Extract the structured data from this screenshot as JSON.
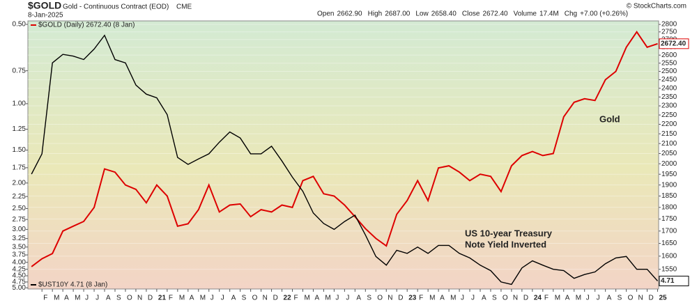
{
  "header": {
    "symbol": "$GOLD",
    "name": "Gold - Continuous Contract (EOD)",
    "exchange": "CME",
    "date": "8-Jan-2025",
    "stats": [
      {
        "label": "Open",
        "value": "2662.90"
      },
      {
        "label": "High",
        "value": "2687.00"
      },
      {
        "label": "Low",
        "value": "2658.40"
      },
      {
        "label": "Close",
        "value": "2672.40"
      },
      {
        "label": "Volume",
        "value": "17.4M"
      },
      {
        "label": "Chg",
        "value": "+7.00 (+0.26%)"
      }
    ],
    "copyright": "© StockCharts.com"
  },
  "chart_data": {
    "type": "line",
    "log_scale": true,
    "x": [
      "2020-01",
      "2020-02",
      "2020-03",
      "2020-04",
      "2020-05",
      "2020-06",
      "2020-07",
      "2020-08",
      "2020-09",
      "2020-10",
      "2020-11",
      "2020-12",
      "2021-01",
      "2021-02",
      "2021-03",
      "2021-04",
      "2021-05",
      "2021-06",
      "2021-07",
      "2021-08",
      "2021-09",
      "2021-10",
      "2021-11",
      "2021-12",
      "2022-01",
      "2022-02",
      "2022-03",
      "2022-04",
      "2022-05",
      "2022-06",
      "2022-07",
      "2022-08",
      "2022-09",
      "2022-10",
      "2022-11",
      "2022-12",
      "2023-01",
      "2023-02",
      "2023-03",
      "2023-04",
      "2023-05",
      "2023-06",
      "2023-07",
      "2023-08",
      "2023-09",
      "2023-10",
      "2023-11",
      "2023-12",
      "2024-01",
      "2024-02",
      "2024-03",
      "2024-04",
      "2024-05",
      "2024-06",
      "2024-07",
      "2024-08",
      "2024-09",
      "2024-10",
      "2024-11",
      "2024-12",
      "2025-01"
    ],
    "xlim": [
      "2020-01",
      "2025-01"
    ],
    "xticks": [
      {
        "value": "2020-02",
        "label": "F"
      },
      {
        "value": "2020-03",
        "label": "M"
      },
      {
        "value": "2020-04",
        "label": "A"
      },
      {
        "value": "2020-05",
        "label": "M"
      },
      {
        "value": "2020-06",
        "label": "J"
      },
      {
        "value": "2020-07",
        "label": "J"
      },
      {
        "value": "2020-08",
        "label": "A"
      },
      {
        "value": "2020-09",
        "label": "S"
      },
      {
        "value": "2020-10",
        "label": "O"
      },
      {
        "value": "2020-11",
        "label": "N"
      },
      {
        "value": "2020-12",
        "label": "D"
      },
      {
        "value": "2021-01",
        "label": "21"
      },
      {
        "value": "2021-02",
        "label": "F"
      },
      {
        "value": "2021-03",
        "label": "M"
      },
      {
        "value": "2021-04",
        "label": "A"
      },
      {
        "value": "2021-05",
        "label": "M"
      },
      {
        "value": "2021-06",
        "label": "J"
      },
      {
        "value": "2021-07",
        "label": "J"
      },
      {
        "value": "2021-08",
        "label": "A"
      },
      {
        "value": "2021-09",
        "label": "S"
      },
      {
        "value": "2021-10",
        "label": "O"
      },
      {
        "value": "2021-11",
        "label": "N"
      },
      {
        "value": "2021-12",
        "label": "D"
      },
      {
        "value": "2022-01",
        "label": "22"
      },
      {
        "value": "2022-02",
        "label": "F"
      },
      {
        "value": "2022-03",
        "label": "M"
      },
      {
        "value": "2022-04",
        "label": "A"
      },
      {
        "value": "2022-05",
        "label": "M"
      },
      {
        "value": "2022-06",
        "label": "J"
      },
      {
        "value": "2022-07",
        "label": "J"
      },
      {
        "value": "2022-08",
        "label": "A"
      },
      {
        "value": "2022-09",
        "label": "S"
      },
      {
        "value": "2022-10",
        "label": "O"
      },
      {
        "value": "2022-11",
        "label": "N"
      },
      {
        "value": "2022-12",
        "label": "D"
      },
      {
        "value": "2023-01",
        "label": "23"
      },
      {
        "value": "2023-02",
        "label": "F"
      },
      {
        "value": "2023-03",
        "label": "M"
      },
      {
        "value": "2023-04",
        "label": "A"
      },
      {
        "value": "2023-05",
        "label": "M"
      },
      {
        "value": "2023-06",
        "label": "J"
      },
      {
        "value": "2023-07",
        "label": "J"
      },
      {
        "value": "2023-08",
        "label": "A"
      },
      {
        "value": "2023-09",
        "label": "S"
      },
      {
        "value": "2023-10",
        "label": "O"
      },
      {
        "value": "2023-11",
        "label": "N"
      },
      {
        "value": "2023-12",
        "label": "D"
      },
      {
        "value": "2024-01",
        "label": "24"
      },
      {
        "value": "2024-02",
        "label": "F"
      },
      {
        "value": "2024-03",
        "label": "M"
      },
      {
        "value": "2024-04",
        "label": "A"
      },
      {
        "value": "2024-05",
        "label": "M"
      },
      {
        "value": "2024-06",
        "label": "J"
      },
      {
        "value": "2024-07",
        "label": "J"
      },
      {
        "value": "2024-08",
        "label": "A"
      },
      {
        "value": "2024-09",
        "label": "S"
      },
      {
        "value": "2024-10",
        "label": "O"
      },
      {
        "value": "2024-11",
        "label": "N"
      },
      {
        "value": "2024-12",
        "label": "D"
      },
      {
        "value": "2025-01",
        "label": "25"
      }
    ],
    "ylim": [
      1478,
      2824
    ],
    "yticks": [
      1550,
      1600,
      1650,
      1700,
      1750,
      1800,
      1850,
      1900,
      1950,
      2000,
      2050,
      2100,
      2150,
      2200,
      2250,
      2300,
      2350,
      2400,
      2450,
      2500,
      2550,
      2600,
      2650,
      2700,
      2750,
      2800
    ],
    "y2lim": [
      0.485,
      5.05
    ],
    "y2_inverted": true,
    "y2ticks": [
      {
        "value": 0.5,
        "label": "0.50"
      },
      {
        "value": 0.75,
        "label": "0.75"
      },
      {
        "value": 1,
        "label": "1.00"
      },
      {
        "value": 1.25,
        "label": "1.25"
      },
      {
        "value": 1.5,
        "label": "1.50"
      },
      {
        "value": 1.75,
        "label": "1.75"
      },
      {
        "value": 2,
        "label": "2.00"
      },
      {
        "value": 2.25,
        "label": "2.25"
      },
      {
        "value": 2.5,
        "label": "2.50"
      },
      {
        "value": 2.75,
        "label": "2.75"
      },
      {
        "value": 3,
        "label": "3.00"
      },
      {
        "value": 3.25,
        "label": "3.25"
      },
      {
        "value": 3.5,
        "label": "3.50"
      },
      {
        "value": 3.75,
        "label": "3.75"
      },
      {
        "value": 4,
        "label": "4.00"
      },
      {
        "value": 4.25,
        "label": "4.25"
      },
      {
        "value": 4.5,
        "label": "4.50"
      },
      {
        "value": 4.75,
        "label": "4.75"
      },
      {
        "value": 5,
        "label": "5.00"
      }
    ],
    "series": [
      {
        "name": "$GOLD (Daily) 2672.40 (8 Jan)",
        "color": "#dd0000",
        "last_label": "2672.40",
        "values": [
          1560,
          1590,
          1610,
          1700,
          1720,
          1740,
          1800,
          1975,
          1960,
          1900,
          1880,
          1820,
          1900,
          1850,
          1720,
          1730,
          1790,
          1900,
          1780,
          1810,
          1815,
          1760,
          1790,
          1780,
          1810,
          1800,
          1920,
          1940,
          1860,
          1850,
          1810,
          1760,
          1710,
          1670,
          1640,
          1770,
          1830,
          1920,
          1830,
          1980,
          1990,
          1960,
          1920,
          1950,
          1940,
          1870,
          1990,
          2040,
          2060,
          2040,
          2050,
          2240,
          2320,
          2340,
          2330,
          2450,
          2500,
          2650,
          2750,
          2650,
          2672.4
        ]
      },
      {
        "name": "$UST10Y 4.71 (8 Jan)",
        "color": "#000000",
        "axis": "y2",
        "last_label": "4.71",
        "values": [
          1.85,
          1.55,
          0.7,
          0.65,
          0.66,
          0.68,
          0.62,
          0.55,
          0.68,
          0.7,
          0.85,
          0.92,
          0.95,
          1.1,
          1.6,
          1.7,
          1.62,
          1.55,
          1.4,
          1.28,
          1.35,
          1.55,
          1.55,
          1.45,
          1.65,
          1.9,
          2.15,
          2.6,
          2.85,
          3.0,
          2.8,
          2.65,
          3.15,
          3.8,
          4.1,
          3.6,
          3.7,
          3.5,
          3.7,
          3.45,
          3.45,
          3.7,
          3.85,
          4.1,
          4.3,
          4.75,
          4.85,
          4.2,
          3.95,
          4.1,
          4.25,
          4.3,
          4.6,
          4.45,
          4.35,
          4.05,
          3.85,
          3.8,
          4.25,
          4.25,
          4.71
        ]
      }
    ],
    "annotations": [
      {
        "text": "Gold",
        "color": "#dd0000"
      },
      {
        "text": "US 10-year Treasury",
        "color": "#000000"
      },
      {
        "text": "Note Yield Inverted",
        "color": "#000000"
      }
    ]
  }
}
